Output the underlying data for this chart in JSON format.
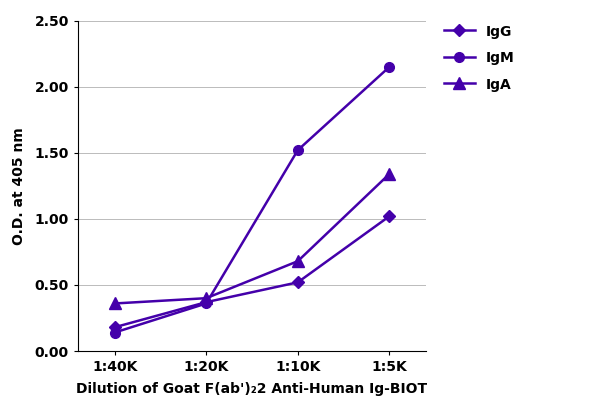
{
  "x_labels": [
    "1:40K",
    "1:20K",
    "1:10K",
    "1:5K"
  ],
  "x_values": [
    1,
    2,
    3,
    4
  ],
  "IgG": [
    0.18,
    0.37,
    0.52,
    1.02
  ],
  "IgM": [
    0.14,
    0.36,
    1.52,
    2.15
  ],
  "IgA": [
    0.36,
    0.4,
    0.68,
    1.34
  ],
  "color": "#4400aa",
  "ylabel": "O.D. at 405 nm",
  "xlabel": "Dilution of Goat F(ab')₂2 Anti-Human Ig-BIOT",
  "ylim": [
    0.0,
    2.5
  ],
  "yticks": [
    0.0,
    0.5,
    1.0,
    1.5,
    2.0,
    2.5
  ],
  "axis_fontsize": 10,
  "tick_fontsize": 10,
  "legend_fontsize": 10,
  "background_color": "#ffffff",
  "grid_color": "#bbbbbb"
}
